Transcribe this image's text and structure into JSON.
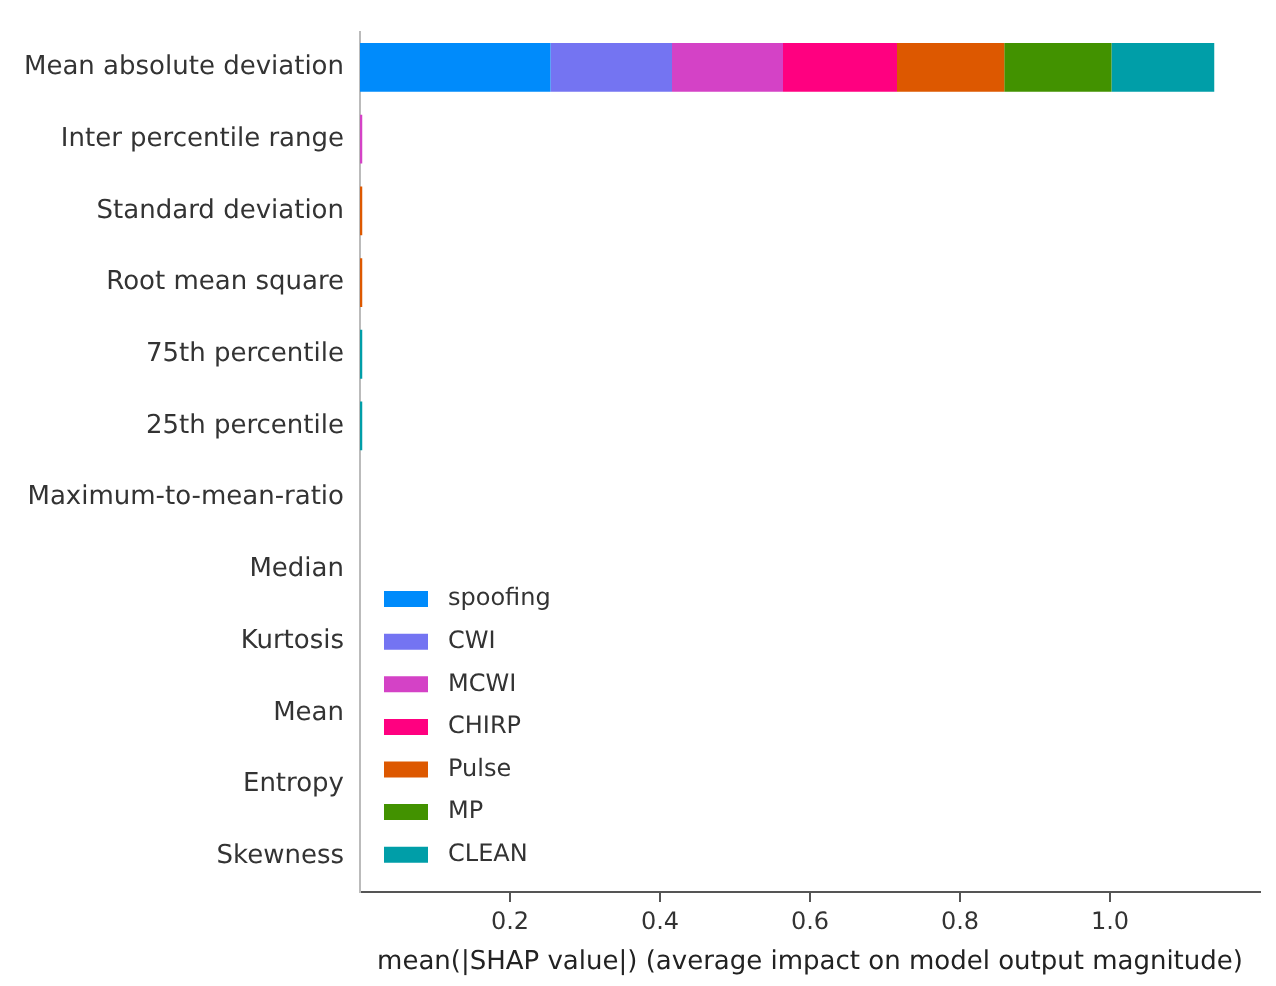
{
  "chart_data": {
    "type": "bar",
    "orientation": "horizontal",
    "stacked": true,
    "categories": [
      "Mean absolute deviation",
      "Inter percentile range",
      "Standard deviation",
      "Root mean square",
      "75th percentile",
      "25th percentile",
      "Maximum-to-mean-ratio",
      "Median",
      "Kurtosis",
      "Mean",
      "Entropy",
      "Skewness"
    ],
    "series": [
      {
        "name": "spoofing",
        "color": "#008bfb",
        "values": [
          0.254,
          0,
          0,
          0,
          0,
          0,
          0,
          0,
          0,
          0,
          0,
          0
        ]
      },
      {
        "name": "CWI",
        "color": "#7474f2",
        "values": [
          0.162,
          0,
          0,
          0,
          0,
          0,
          0,
          0,
          0,
          0,
          0,
          0
        ]
      },
      {
        "name": "MCWI",
        "color": "#d442c6",
        "values": [
          0.148,
          0.003,
          0,
          0,
          0,
          0,
          0,
          0,
          0,
          0,
          0,
          0
        ]
      },
      {
        "name": "CHIRP",
        "color": "#ff0080",
        "values": [
          0.152,
          0,
          0,
          0,
          0,
          0,
          0,
          0,
          0,
          0,
          0,
          0
        ]
      },
      {
        "name": "Pulse",
        "color": "#dd5800",
        "values": [
          0.143,
          0,
          0.003,
          0.003,
          0,
          0,
          0,
          0,
          0,
          0,
          0,
          0
        ]
      },
      {
        "name": "MP",
        "color": "#429200",
        "values": [
          0.143,
          0,
          0,
          0,
          0,
          0,
          0,
          0,
          0,
          0,
          0,
          0
        ]
      },
      {
        "name": "CLEAN",
        "color": "#009ea8",
        "values": [
          0.137,
          0,
          0,
          0,
          0.003,
          0.003,
          0,
          0,
          0,
          0,
          0,
          0
        ]
      }
    ],
    "xlabel": "mean(|SHAP value|) (average impact on model output magnitude)",
    "xlim": [
      0,
      1.2
    ],
    "xticks": [
      0.2,
      0.4,
      0.6,
      0.8,
      {
        "value": 1,
        "label": "1.0"
      }
    ],
    "grid": false,
    "legend": "bottom left"
  }
}
